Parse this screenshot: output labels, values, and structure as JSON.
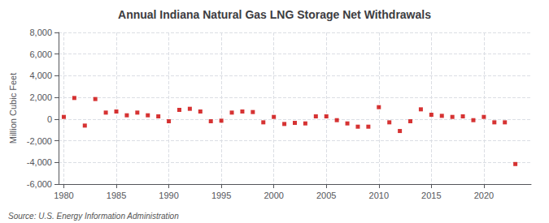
{
  "chart_data": {
    "type": "scatter",
    "title": "Annual Indiana Natural Gas LNG Storage Net Withdrawals",
    "ylabel": "Million Cubic Feet",
    "annotations": [
      "Source: U.S. Energy Information Administration"
    ],
    "x": [
      1980,
      1981,
      1982,
      1983,
      1984,
      1985,
      1986,
      1987,
      1988,
      1989,
      1990,
      1991,
      1992,
      1993,
      1994,
      1995,
      1996,
      1997,
      1998,
      1999,
      2000,
      2001,
      2002,
      2003,
      2004,
      2005,
      2006,
      2007,
      2008,
      2009,
      2010,
      2011,
      2012,
      2013,
      2014,
      2015,
      2016,
      2017,
      2018,
      2019,
      2020,
      2021,
      2022,
      2023
    ],
    "values": [
      200,
      1950,
      -600,
      1850,
      600,
      700,
      350,
      600,
      350,
      250,
      -200,
      850,
      950,
      700,
      -200,
      -150,
      600,
      700,
      650,
      -300,
      200,
      -450,
      -350,
      -400,
      250,
      250,
      -100,
      -400,
      -700,
      -700,
      1100,
      -300,
      -1100,
      -200,
      900,
      400,
      300,
      200,
      250,
      -100,
      200,
      -300,
      -300,
      -4150
    ],
    "color": "#cc0000",
    "marker": "square",
    "xlim": [
      1979.5,
      2024.5
    ],
    "xticks": [
      1980,
      1985,
      1990,
      1995,
      2000,
      2005,
      2010,
      2015,
      2020
    ],
    "ylim": [
      -6000,
      8000
    ],
    "yticks": [
      {
        "value": -6000,
        "label": "-6,000"
      },
      {
        "value": -4000,
        "label": "-4,000"
      },
      {
        "value": -2000,
        "label": "-2,000"
      },
      0,
      {
        "value": 2000,
        "label": "2,000"
      },
      {
        "value": 4000,
        "label": "4,000"
      },
      {
        "value": 6000,
        "label": "6,000"
      },
      {
        "value": 8000,
        "label": "8,000"
      }
    ],
    "grid": true
  }
}
